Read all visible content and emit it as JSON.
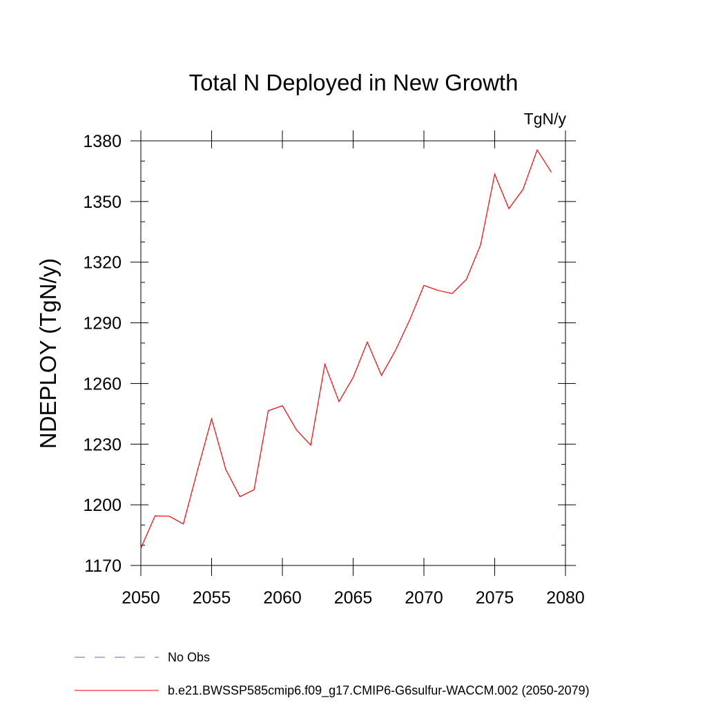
{
  "chart_data": {
    "type": "line",
    "title": "Total N Deployed in New Growth",
    "units": "TgN/y",
    "ylabel": "NDEPLOY  (TgN/y)",
    "xlabel": "",
    "xlim": [
      2050,
      2080
    ],
    "ylim": [
      1170,
      1380
    ],
    "x_ticks": [
      2050,
      2055,
      2060,
      2065,
      2070,
      2075,
      2080
    ],
    "y_ticks": [
      1170,
      1200,
      1230,
      1260,
      1290,
      1320,
      1350,
      1380
    ],
    "grid": false,
    "legend_position": "bottom-left",
    "series": [
      {
        "name": "b.e21.BWSSP585cmip6.f09_g17.CMIP6-G6sulfur-WACCM.002 (2050-2079)",
        "color": "#ff0000",
        "style": "solid",
        "x": [
          2050,
          2051,
          2052,
          2053,
          2054,
          2055,
          2056,
          2057,
          2058,
          2059,
          2060,
          2061,
          2062,
          2063,
          2064,
          2065,
          2066,
          2067,
          2068,
          2069,
          2070,
          2071,
          2072,
          2073,
          2074,
          2075,
          2076,
          2077,
          2078,
          2079
        ],
        "y": [
          1178.5,
          1194.5,
          1194.4,
          1190.5,
          1217,
          1242.5,
          1217.5,
          1204,
          1207.5,
          1246.5,
          1249,
          1237,
          1229.5,
          1269.5,
          1251,
          1263,
          1280.5,
          1264,
          1276.5,
          1291.5,
          1308.5,
          1306,
          1304.5,
          1311.5,
          1328.5,
          1363.5,
          1346.5,
          1356,
          1375.5,
          1364.5
        ]
      }
    ],
    "legend": [
      {
        "label": "No Obs",
        "color": "#6f5fb8",
        "style": "dashed"
      },
      {
        "label": "b.e21.BWSSP585cmip6.f09_g17.CMIP6-G6sulfur-WACCM.002 (2050-2079)",
        "color": "#ff0000",
        "style": "solid"
      }
    ]
  }
}
